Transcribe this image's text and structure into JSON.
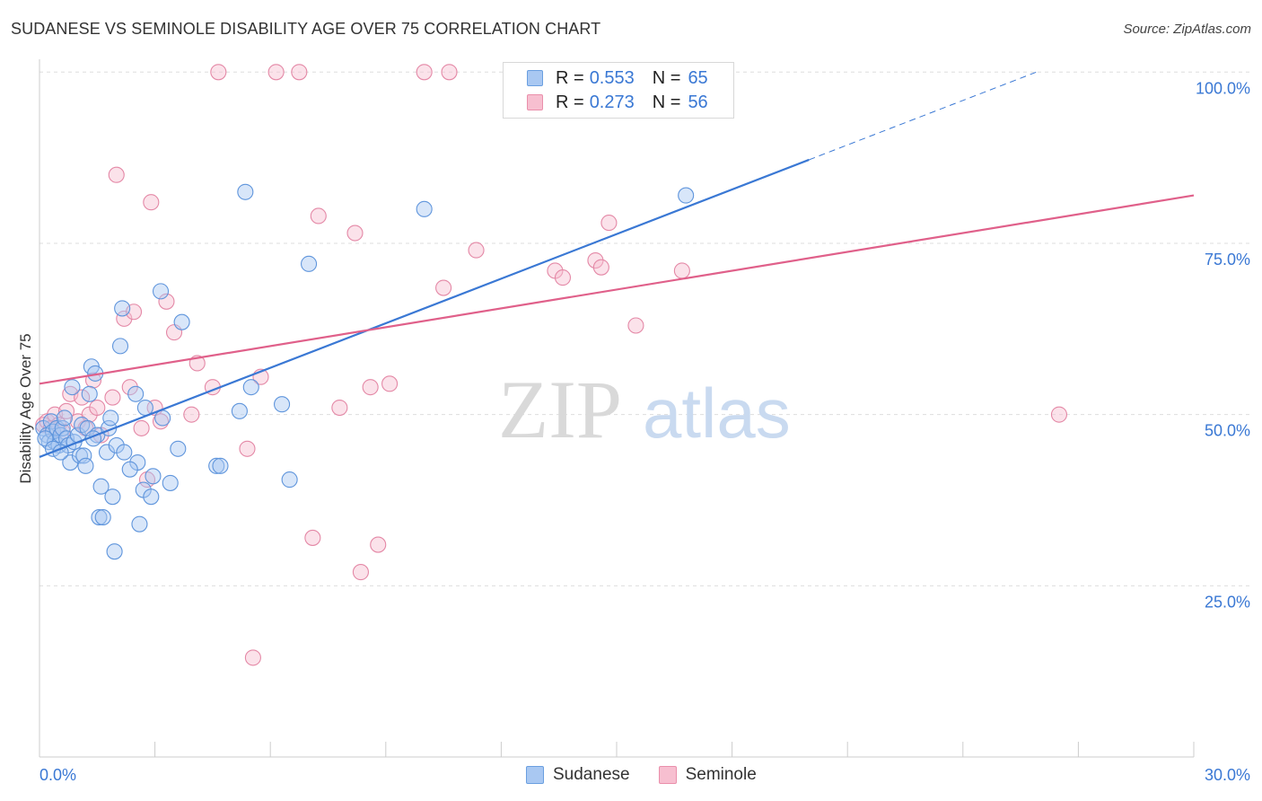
{
  "header": {
    "title": "SUDANESE VS SEMINOLE DISABILITY AGE OVER 75 CORRELATION CHART",
    "source": "Source: ZipAtlas.com"
  },
  "watermark": {
    "zip": "ZIP",
    "atlas": "atlas"
  },
  "legend": {
    "rows": [
      {
        "r_label": "R =",
        "r_value": "0.553",
        "n_label": "N =",
        "n_value": "65",
        "fill": "#a9c8f2",
        "stroke": "#6a9fe0"
      },
      {
        "r_label": "R =",
        "r_value": "0.273",
        "n_label": "N =",
        "n_value": "56",
        "fill": "#f7bfd0",
        "stroke": "#ea8fab"
      }
    ]
  },
  "bottom_legend": [
    {
      "label": "Sudanese",
      "fill": "#a9c8f2",
      "stroke": "#6a9fe0"
    },
    {
      "label": "Seminole",
      "fill": "#f7bfd0",
      "stroke": "#ea8fab"
    }
  ],
  "chart_data": {
    "type": "scatter",
    "title": "SUDANESE VS SEMINOLE DISABILITY AGE OVER 75 CORRELATION CHART",
    "xlabel": "",
    "ylabel": "Disability Age Over 75",
    "xlim": [
      0,
      30
    ],
    "ylim": [
      0,
      105
    ],
    "x_tick_labels": [
      "0.0%",
      "30.0%"
    ],
    "y_ticks": [
      25,
      50,
      75,
      100
    ],
    "y_tick_labels": [
      "25.0%",
      "50.0%",
      "75.0%",
      "100.0%"
    ],
    "grid": "horizontal dashed",
    "colors": {
      "sudanese": "#3a78d4",
      "seminole": "#e0608a",
      "tick_label": "#3a78d4"
    },
    "series": [
      {
        "name": "Sudanese",
        "color": "#3a78d4",
        "points": [
          [
            0.1,
            48
          ],
          [
            0.2,
            47
          ],
          [
            0.25,
            46
          ],
          [
            0.3,
            49
          ],
          [
            0.35,
            47.5
          ],
          [
            0.4,
            46
          ],
          [
            0.45,
            48
          ],
          [
            0.5,
            45.5
          ],
          [
            0.55,
            47
          ],
          [
            0.6,
            48
          ],
          [
            0.65,
            49.5
          ],
          [
            0.7,
            46.5
          ],
          [
            0.75,
            45.5
          ],
          [
            0.8,
            43
          ],
          [
            0.85,
            54
          ],
          [
            0.9,
            46
          ],
          [
            1.0,
            47
          ],
          [
            1.05,
            44
          ],
          [
            1.1,
            48.5
          ],
          [
            1.15,
            44
          ],
          [
            1.2,
            42.5
          ],
          [
            1.25,
            48
          ],
          [
            1.3,
            53
          ],
          [
            1.35,
            57
          ],
          [
            1.45,
            56
          ],
          [
            1.5,
            47
          ],
          [
            1.55,
            35
          ],
          [
            1.6,
            39.5
          ],
          [
            1.65,
            35
          ],
          [
            1.75,
            44.5
          ],
          [
            1.8,
            48
          ],
          [
            1.85,
            49.5
          ],
          [
            1.9,
            38
          ],
          [
            1.95,
            30
          ],
          [
            2.0,
            45.5
          ],
          [
            2.1,
            60
          ],
          [
            2.15,
            65.5
          ],
          [
            2.2,
            44.5
          ],
          [
            2.5,
            53
          ],
          [
            2.55,
            43
          ],
          [
            2.6,
            34
          ],
          [
            2.7,
            39
          ],
          [
            2.75,
            51
          ],
          [
            2.9,
            38
          ],
          [
            2.95,
            41
          ],
          [
            3.15,
            68
          ],
          [
            3.2,
            49.5
          ],
          [
            3.4,
            40
          ],
          [
            3.6,
            45
          ],
          [
            3.7,
            63.5
          ],
          [
            4.6,
            42.5
          ],
          [
            4.7,
            42.5
          ],
          [
            5.2,
            50.5
          ],
          [
            5.35,
            82.5
          ],
          [
            5.5,
            54
          ],
          [
            6.3,
            51.5
          ],
          [
            6.5,
            40.5
          ],
          [
            7.0,
            72
          ],
          [
            10.0,
            80
          ],
          [
            16.8,
            82
          ],
          [
            0.15,
            46.5
          ],
          [
            0.35,
            45
          ],
          [
            0.55,
            44.5
          ],
          [
            1.4,
            46.5
          ],
          [
            2.35,
            42
          ]
        ],
        "trend": {
          "x": [
            0,
            20
          ],
          "y": [
            43.8,
            87.2
          ],
          "extended_to": [
            26,
            100.2
          ]
        }
      },
      {
        "name": "Seminole",
        "color": "#e0608a",
        "points": [
          [
            0.1,
            48.5
          ],
          [
            0.2,
            49
          ],
          [
            0.3,
            48
          ],
          [
            0.4,
            50
          ],
          [
            0.5,
            48.5
          ],
          [
            0.6,
            47.5
          ],
          [
            0.7,
            50.5
          ],
          [
            0.8,
            53
          ],
          [
            1.0,
            49
          ],
          [
            1.1,
            52.5
          ],
          [
            1.2,
            48
          ],
          [
            1.3,
            50
          ],
          [
            1.4,
            55
          ],
          [
            1.5,
            51
          ],
          [
            1.6,
            47
          ],
          [
            1.9,
            52.5
          ],
          [
            2.0,
            85
          ],
          [
            2.2,
            64
          ],
          [
            2.35,
            54
          ],
          [
            2.45,
            65
          ],
          [
            2.65,
            48
          ],
          [
            2.8,
            40.5
          ],
          [
            2.9,
            81
          ],
          [
            3.0,
            51
          ],
          [
            3.15,
            49
          ],
          [
            3.3,
            66.5
          ],
          [
            3.5,
            62
          ],
          [
            3.95,
            50
          ],
          [
            4.1,
            57.5
          ],
          [
            4.5,
            54
          ],
          [
            4.65,
            100
          ],
          [
            5.4,
            45
          ],
          [
            5.55,
            14.5
          ],
          [
            5.75,
            55.5
          ],
          [
            6.15,
            100
          ],
          [
            6.75,
            100
          ],
          [
            7.1,
            32
          ],
          [
            7.25,
            79
          ],
          [
            7.8,
            51
          ],
          [
            8.2,
            76.5
          ],
          [
            8.35,
            27
          ],
          [
            8.6,
            54
          ],
          [
            8.8,
            31
          ],
          [
            9.1,
            54.5
          ],
          [
            10.0,
            100
          ],
          [
            10.5,
            68.5
          ],
          [
            10.65,
            100
          ],
          [
            11.35,
            74
          ],
          [
            13.4,
            71
          ],
          [
            13.6,
            70
          ],
          [
            14.45,
            72.5
          ],
          [
            14.6,
            71.5
          ],
          [
            14.8,
            78
          ],
          [
            15.5,
            63
          ],
          [
            16.7,
            71
          ],
          [
            26.5,
            50
          ]
        ],
        "trend": {
          "x": [
            0,
            30
          ],
          "y": [
            54.5,
            82
          ]
        }
      }
    ]
  }
}
